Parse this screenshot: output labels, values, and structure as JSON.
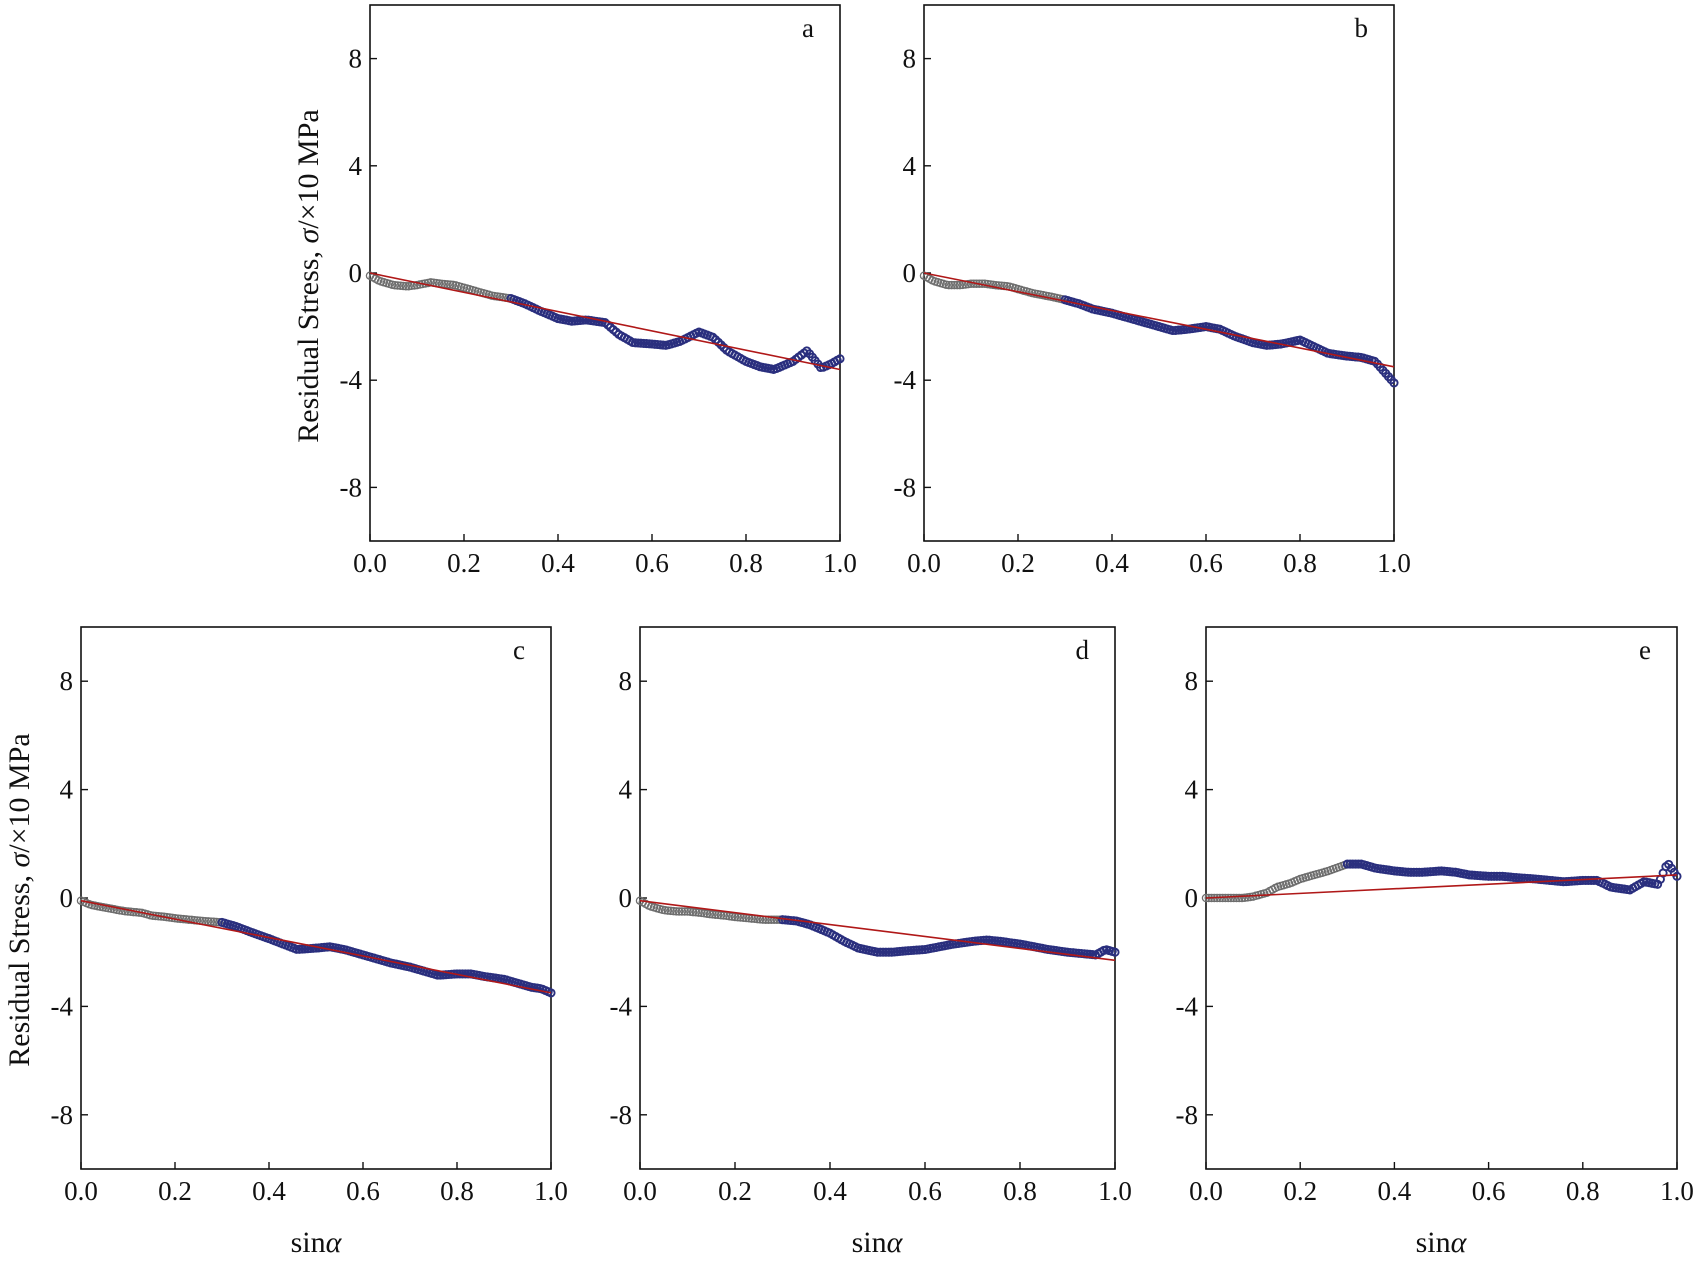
{
  "figure": {
    "ylabel_main": "Residual Stress, ",
    "ylabel_sym": "σ",
    "ylabel_unit": "/×10 MPa",
    "xlabel_main": "sin",
    "xlabel_sym": "α"
  },
  "colors": {
    "fit": "#b01818",
    "points_early": "#6e6e6e",
    "points_late": "#2a2f7e",
    "axis": "#111111"
  },
  "chart_data": [
    {
      "type": "scatter",
      "panel": "a",
      "xlim": [
        0,
        1
      ],
      "ylim": [
        -10,
        10
      ],
      "xticks": [
        "0.0",
        "0.2",
        "0.4",
        "0.6",
        "0.8",
        "1.0"
      ],
      "yticks": [
        "-8",
        "-4",
        "0",
        "4",
        "8"
      ],
      "ylabel": "Residual Stress, σ/×10 MPa",
      "xlabel": "",
      "fit": {
        "x": [
          0,
          1
        ],
        "y": [
          0.0,
          -3.6
        ]
      },
      "series": [
        {
          "x": [
            0.0,
            0.02,
            0.05,
            0.08,
            0.1,
            0.13,
            0.15,
            0.18,
            0.2,
            0.23,
            0.26,
            0.3,
            0.33,
            0.36,
            0.4,
            0.43,
            0.46,
            0.5,
            0.53,
            0.56,
            0.6,
            0.63,
            0.66,
            0.7,
            0.73,
            0.76,
            0.8,
            0.83,
            0.86,
            0.9,
            0.93,
            0.96,
            0.98,
            1.0
          ],
          "y": [
            -0.1,
            -0.3,
            -0.45,
            -0.5,
            -0.45,
            -0.35,
            -0.4,
            -0.45,
            -0.55,
            -0.7,
            -0.85,
            -0.95,
            -1.15,
            -1.4,
            -1.7,
            -1.8,
            -1.75,
            -1.85,
            -2.3,
            -2.6,
            -2.65,
            -2.7,
            -2.55,
            -2.2,
            -2.4,
            -2.9,
            -3.3,
            -3.5,
            -3.6,
            -3.3,
            -2.9,
            -3.55,
            -3.4,
            -3.2
          ]
        }
      ]
    },
    {
      "type": "scatter",
      "panel": "b",
      "xlim": [
        0,
        1
      ],
      "ylim": [
        -10,
        10
      ],
      "xticks": [
        "0.0",
        "0.2",
        "0.4",
        "0.6",
        "0.8",
        "1.0"
      ],
      "yticks": [
        "-8",
        "-4",
        "0",
        "4",
        "8"
      ],
      "ylabel": "",
      "xlabel": "",
      "fit": {
        "x": [
          0,
          1
        ],
        "y": [
          0.0,
          -3.5
        ]
      },
      "series": [
        {
          "x": [
            0.0,
            0.02,
            0.05,
            0.08,
            0.1,
            0.13,
            0.15,
            0.18,
            0.2,
            0.23,
            0.26,
            0.3,
            0.33,
            0.36,
            0.4,
            0.43,
            0.46,
            0.5,
            0.53,
            0.56,
            0.6,
            0.63,
            0.66,
            0.7,
            0.73,
            0.76,
            0.8,
            0.83,
            0.86,
            0.9,
            0.93,
            0.96,
            0.98,
            1.0
          ],
          "y": [
            -0.1,
            -0.3,
            -0.45,
            -0.45,
            -0.4,
            -0.4,
            -0.45,
            -0.5,
            -0.6,
            -0.75,
            -0.85,
            -1.0,
            -1.15,
            -1.35,
            -1.5,
            -1.65,
            -1.8,
            -2.0,
            -2.15,
            -2.1,
            -2.0,
            -2.1,
            -2.35,
            -2.6,
            -2.7,
            -2.65,
            -2.5,
            -2.75,
            -3.0,
            -3.1,
            -3.15,
            -3.3,
            -3.7,
            -4.1
          ]
        }
      ]
    },
    {
      "type": "scatter",
      "panel": "c",
      "xlim": [
        0,
        1
      ],
      "ylim": [
        -10,
        10
      ],
      "xticks": [
        "0.0",
        "0.2",
        "0.4",
        "0.6",
        "0.8",
        "1.0"
      ],
      "yticks": [
        "-8",
        "-4",
        "0",
        "4",
        "8"
      ],
      "ylabel": "Residual Stress, σ/×10 MPa",
      "xlabel": "sinα",
      "fit": {
        "x": [
          0,
          1
        ],
        "y": [
          -0.1,
          -3.5
        ]
      },
      "series": [
        {
          "x": [
            0.0,
            0.02,
            0.05,
            0.08,
            0.1,
            0.13,
            0.15,
            0.18,
            0.2,
            0.23,
            0.26,
            0.3,
            0.33,
            0.36,
            0.4,
            0.43,
            0.46,
            0.5,
            0.53,
            0.56,
            0.6,
            0.63,
            0.66,
            0.7,
            0.73,
            0.76,
            0.8,
            0.83,
            0.86,
            0.9,
            0.93,
            0.96,
            0.98,
            1.0
          ],
          "y": [
            -0.1,
            -0.25,
            -0.35,
            -0.45,
            -0.5,
            -0.55,
            -0.65,
            -0.7,
            -0.75,
            -0.8,
            -0.85,
            -0.9,
            -1.05,
            -1.25,
            -1.5,
            -1.7,
            -1.9,
            -1.85,
            -1.8,
            -1.9,
            -2.1,
            -2.25,
            -2.4,
            -2.55,
            -2.7,
            -2.85,
            -2.8,
            -2.8,
            -2.9,
            -3.0,
            -3.15,
            -3.3,
            -3.35,
            -3.5
          ]
        }
      ]
    },
    {
      "type": "scatter",
      "panel": "d",
      "xlim": [
        0,
        1
      ],
      "ylim": [
        -10,
        10
      ],
      "xticks": [
        "0.0",
        "0.2",
        "0.4",
        "0.6",
        "0.8",
        "1.0"
      ],
      "yticks": [
        "-8",
        "-4",
        "0",
        "4",
        "8"
      ],
      "ylabel": "",
      "xlabel": "sinα",
      "fit": {
        "x": [
          0,
          1
        ],
        "y": [
          -0.1,
          -2.3
        ]
      },
      "series": [
        {
          "x": [
            0.0,
            0.02,
            0.05,
            0.08,
            0.1,
            0.13,
            0.15,
            0.18,
            0.2,
            0.23,
            0.26,
            0.3,
            0.33,
            0.36,
            0.4,
            0.43,
            0.46,
            0.5,
            0.53,
            0.56,
            0.6,
            0.63,
            0.66,
            0.7,
            0.73,
            0.76,
            0.8,
            0.83,
            0.86,
            0.9,
            0.93,
            0.96,
            0.98,
            1.0
          ],
          "y": [
            -0.1,
            -0.3,
            -0.45,
            -0.5,
            -0.5,
            -0.55,
            -0.6,
            -0.65,
            -0.7,
            -0.75,
            -0.8,
            -0.8,
            -0.85,
            -1.0,
            -1.3,
            -1.6,
            -1.85,
            -2.0,
            -2.0,
            -1.95,
            -1.9,
            -1.8,
            -1.7,
            -1.6,
            -1.55,
            -1.6,
            -1.7,
            -1.8,
            -1.9,
            -2.0,
            -2.05,
            -2.1,
            -1.9,
            -2.0
          ]
        }
      ]
    },
    {
      "type": "scatter",
      "panel": "e",
      "xlim": [
        0,
        1
      ],
      "ylim": [
        -10,
        10
      ],
      "xticks": [
        "0.0",
        "0.2",
        "0.4",
        "0.6",
        "0.8",
        "1.0"
      ],
      "yticks": [
        "-8",
        "-4",
        "0",
        "4",
        "8"
      ],
      "ylabel": "",
      "xlabel": "sinα",
      "fit": {
        "x": [
          0,
          1
        ],
        "y": [
          0.0,
          0.85
        ]
      },
      "series": [
        {
          "x": [
            0.0,
            0.02,
            0.05,
            0.08,
            0.1,
            0.13,
            0.15,
            0.18,
            0.2,
            0.23,
            0.26,
            0.3,
            0.33,
            0.36,
            0.4,
            0.43,
            0.46,
            0.5,
            0.53,
            0.56,
            0.6,
            0.63,
            0.66,
            0.7,
            0.73,
            0.76,
            0.8,
            0.83,
            0.86,
            0.9,
            0.93,
            0.96,
            0.98,
            1.0
          ],
          "y": [
            0.0,
            0.0,
            0.0,
            0.0,
            0.05,
            0.2,
            0.4,
            0.55,
            0.7,
            0.85,
            1.0,
            1.25,
            1.25,
            1.1,
            1.0,
            0.95,
            0.95,
            1.0,
            0.95,
            0.85,
            0.8,
            0.8,
            0.75,
            0.7,
            0.65,
            0.6,
            0.65,
            0.65,
            0.4,
            0.3,
            0.6,
            0.5,
            1.3,
            0.8
          ]
        }
      ]
    }
  ]
}
